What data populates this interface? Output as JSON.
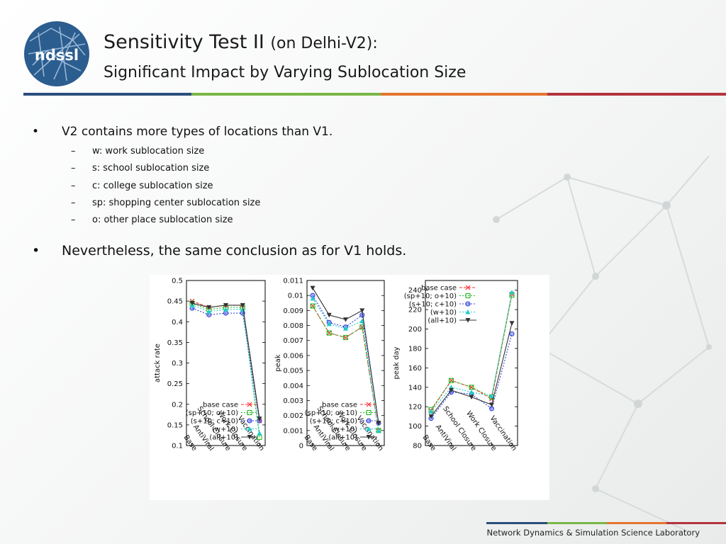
{
  "slide": {
    "title_main": "Sensitivity Test II",
    "title_paren": "(on Delhi-V2):",
    "title_line2": "Significant Impact by Varying Sublocation Size",
    "logo_text": "ndssl",
    "bullets": [
      {
        "text": "V2 contains more types of locations than V1.",
        "subitems": [
          "w: work sublocation size",
          "s: school sublocation size",
          "c: college sublocation size",
          "sp: shopping center sublocation size",
          "o: other place sublocation size"
        ]
      },
      {
        "text": "Nevertheless, the same conclusion as for V1 holds.",
        "subitems": []
      }
    ],
    "bullet_char": "•",
    "dash_char": "–",
    "footer": "Network Dynamics & Simulation Science Laboratory"
  },
  "colors": {
    "blue": "#2a4f7c",
    "green": "#7ab648",
    "orange": "#e3752d",
    "red": "#b2353d",
    "s_base": "#ff2a2a",
    "s_sp": "#22bb22",
    "s_s": "#3344dd",
    "s_w": "#22cccc",
    "s_all": "#333333"
  },
  "chart_data": [
    {
      "type": "line",
      "categories": [
        "Base",
        "AntiViral",
        "School Closure",
        "Work Closure",
        "Vaccination"
      ],
      "ylabel": "attack rate",
      "ylim": [
        0.1,
        0.5
      ],
      "yticks": [
        "0.1",
        "0.15",
        "0.2",
        "0.25",
        "0.3",
        "0.35",
        "0.4",
        "0.45",
        "0.5"
      ],
      "legend": "bottom-right",
      "series": [
        {
          "name": "base case",
          "values": [
            0.45,
            0.435,
            0.44,
            0.44,
            0.16
          ]
        },
        {
          "name": "(sp+10; o+10)",
          "values": [
            0.445,
            0.43,
            0.435,
            0.435,
            0.12
          ]
        },
        {
          "name": "(s+10; c+10)",
          "values": [
            0.433,
            0.417,
            0.421,
            0.421,
            0.16
          ]
        },
        {
          "name": "(w+10)",
          "values": [
            0.44,
            0.425,
            0.43,
            0.43,
            0.13
          ]
        },
        {
          "name": "(all+10)",
          "values": [
            0.445,
            0.435,
            0.44,
            0.44,
            0.165
          ]
        }
      ]
    },
    {
      "type": "line",
      "categories": [
        "Base",
        "AntiViral",
        "School Closure",
        "Work Closure",
        "Vaccination"
      ],
      "ylabel": "peak",
      "ylim": [
        0,
        0.011
      ],
      "yticks": [
        "0",
        "0.001",
        "0.002",
        "0.003",
        "0.004",
        "0.005",
        "0.006",
        "0.007",
        "0.008",
        "0.009",
        "0.01",
        "0.011"
      ],
      "legend": "bottom-right",
      "series": [
        {
          "name": "base case",
          "values": [
            0.0093,
            0.0075,
            0.0072,
            0.0079,
            0.001
          ]
        },
        {
          "name": "(sp+10; o+10)",
          "values": [
            0.0093,
            0.0075,
            0.0072,
            0.0079,
            0.001
          ]
        },
        {
          "name": "(s+10; c+10)",
          "values": [
            0.01,
            0.0082,
            0.0079,
            0.0087,
            0.0015
          ]
        },
        {
          "name": "(w+10)",
          "values": [
            0.0098,
            0.0081,
            0.0078,
            0.0083,
            0.001
          ]
        },
        {
          "name": "(all+10)",
          "values": [
            0.0105,
            0.0087,
            0.0084,
            0.009,
            0.0015
          ]
        }
      ]
    },
    {
      "type": "line",
      "categories": [
        "Base",
        "AntiViral",
        "School Closure",
        "Work Closure",
        "Vaccination"
      ],
      "ylabel": "peak day",
      "ylim": [
        80,
        250
      ],
      "yticks": [
        "80",
        "100",
        "120",
        "140",
        "160",
        "180",
        "200",
        "220",
        "240"
      ],
      "legend": "top-left",
      "series": [
        {
          "name": "base case",
          "values": [
            116,
            147,
            140,
            128,
            236
          ]
        },
        {
          "name": "(sp+10; o+10)",
          "values": [
            117,
            147,
            140,
            130,
            235
          ]
        },
        {
          "name": "(s+10; c+10)",
          "values": [
            108,
            135,
            133,
            118,
            195
          ]
        },
        {
          "name": "(w+10)",
          "values": [
            115,
            140,
            135,
            131,
            238
          ]
        },
        {
          "name": "(all+10)",
          "values": [
            110,
            137,
            130,
            122,
            206
          ]
        }
      ]
    }
  ]
}
